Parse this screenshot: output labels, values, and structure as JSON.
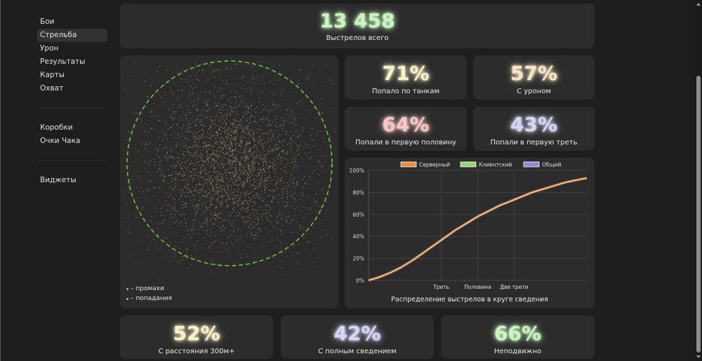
{
  "sidebar": {
    "group1": [
      "Бои",
      "Стрельба",
      "Урон",
      "Результаты",
      "Карты",
      "Охват"
    ],
    "group2": [
      "Коробки",
      "Очки Чака"
    ],
    "group3": [
      "Виджеты"
    ],
    "active": "Стрельба"
  },
  "total": {
    "value": "13 458",
    "label": "Выстрелов всего",
    "color": "#c9f5c0"
  },
  "stats": [
    {
      "value": "71%",
      "label": "Попало по танкам",
      "color": "#f7f1c8"
    },
    {
      "value": "57%",
      "label": "С уроном",
      "color": "#f7e6c6"
    },
    {
      "value": "64%",
      "label": "Попали в первую половину",
      "color": "#f5c6c6"
    },
    {
      "value": "43%",
      "label": "Попали в первую треть",
      "color": "#d6d6f5"
    }
  ],
  "bottom_stats": [
    {
      "value": "52%",
      "label": "С расстояния 300м+",
      "color": "#f7f1c8"
    },
    {
      "value": "42%",
      "label": "С полным сведением",
      "color": "#d6d6f5"
    },
    {
      "value": "66%",
      "label": "Неподвижно",
      "color": "#c9f5c0"
    }
  ],
  "scatter": {
    "legend_miss": "– промахи",
    "legend_hit": "– попадания",
    "miss_color": "#8cc47a",
    "hit_color": "#e8a070",
    "circle_color": "#6ecb3a"
  },
  "chart_data": {
    "type": "line",
    "title": "Распределение выстрелов в круге сведения",
    "legend": [
      {
        "name": "Серверный",
        "color": "#f08a3a"
      },
      {
        "name": "Клиентский",
        "color": "#8fd66f"
      },
      {
        "name": "Общий",
        "color": "#8a8ad8"
      }
    ],
    "ylim": [
      0,
      100
    ],
    "yticks": [
      "0%",
      "20%",
      "40%",
      "60%",
      "80%",
      "100%"
    ],
    "xlim": [
      0,
      1
    ],
    "xticks": [
      {
        "x": 0.3333,
        "label": "Треть"
      },
      {
        "x": 0.5,
        "label": "Половина"
      },
      {
        "x": 0.6667,
        "label": "Две трети"
      }
    ],
    "x": [
      0,
      0.05,
      0.1,
      0.15,
      0.2,
      0.25,
      0.3,
      0.35,
      0.4,
      0.45,
      0.5,
      0.55,
      0.6,
      0.65,
      0.7,
      0.75,
      0.8,
      0.85,
      0.9,
      0.95,
      1.0
    ],
    "series": [
      {
        "name": "Общий",
        "values": [
          0,
          3,
          7,
          12,
          18,
          25,
          32,
          39,
          46,
          52,
          58,
          63,
          68,
          72,
          76,
          80,
          83,
          86,
          89,
          91,
          93
        ]
      }
    ]
  }
}
